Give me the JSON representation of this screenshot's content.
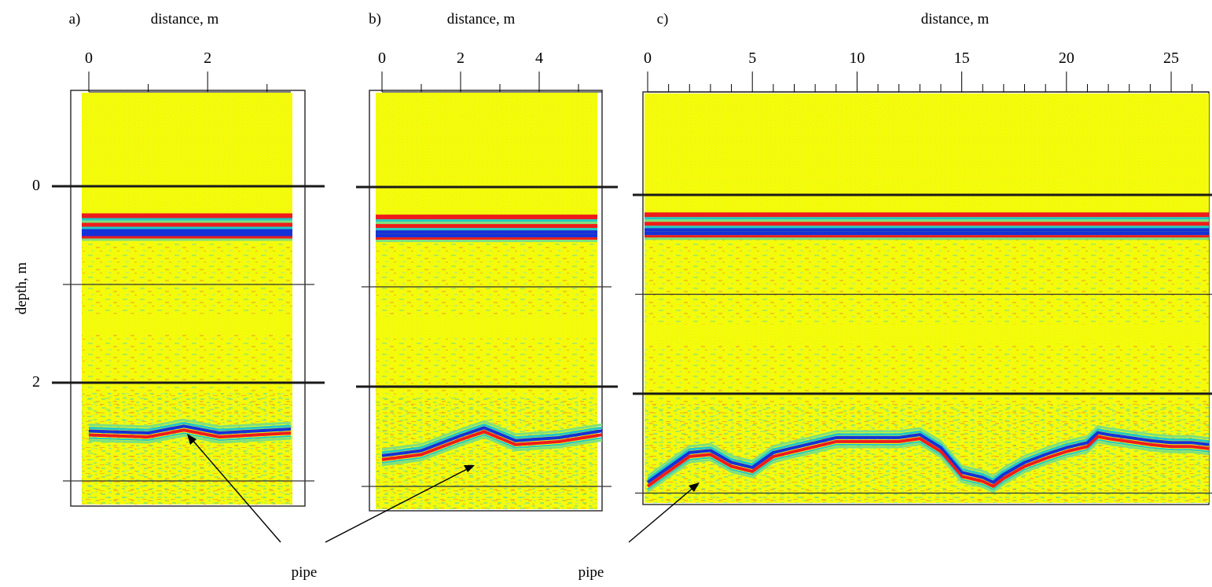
{
  "figure": {
    "y_axis_label": "depth, m",
    "y_ticks": [
      "0",
      "2"
    ],
    "annotation_label": "pipe",
    "colors": {
      "background": "#f5fc0a",
      "red": "#ee1c1c",
      "blue": "#1531d8",
      "cyan": "#22c8c8",
      "green": "#7fe07f",
      "dark": "#1a1a1a"
    }
  },
  "chart_data": [
    {
      "type": "heatmap",
      "panel_label": "a)",
      "xlabel": "distance, m",
      "ylabel": "depth, m",
      "x_ticks": [
        0,
        2
      ],
      "x_minor_ticks": [
        0,
        1,
        2,
        3
      ],
      "xlim": [
        0,
        3.4
      ],
      "thick_depth_lines": [
        0,
        2
      ],
      "thin_depth_lines": [
        1,
        3
      ],
      "surface_reflection_depth": 0.3,
      "pipe_reflector": {
        "x": [
          0,
          1.0,
          1.6,
          2.2,
          3.4
        ],
        "depth": [
          2.5,
          2.52,
          2.45,
          2.52,
          2.48
        ]
      },
      "annotation": "pipe"
    },
    {
      "type": "heatmap",
      "panel_label": "b)",
      "xlabel": "distance, m",
      "x_ticks": [
        0,
        2,
        4
      ],
      "x_minor_ticks": [
        0,
        1,
        2,
        3,
        4,
        5
      ],
      "xlim": [
        0,
        5.6
      ],
      "thick_depth_lines": [
        0,
        2
      ],
      "thin_depth_lines": [
        1,
        3
      ],
      "surface_reflection_depth": 0.3,
      "pipe_reflector": {
        "x": [
          0,
          1.0,
          2.0,
          2.6,
          3.4,
          4.5,
          5.6
        ],
        "depth": [
          2.7,
          2.65,
          2.5,
          2.42,
          2.55,
          2.52,
          2.45
        ]
      },
      "annotation": "pipe"
    },
    {
      "type": "heatmap",
      "panel_label": "c)",
      "xlabel": "distance, m",
      "x_ticks": [
        0,
        5,
        10,
        15,
        20,
        25
      ],
      "x_minor_ticks": [
        0,
        1,
        2,
        3,
        4,
        5,
        6,
        7,
        8,
        9,
        10,
        11,
        12,
        13,
        14,
        15,
        16,
        17,
        18,
        19,
        20,
        21,
        22,
        23,
        24,
        25,
        26
      ],
      "xlim": [
        0,
        26.8
      ],
      "thick_depth_lines": [
        0,
        2
      ],
      "thin_depth_lines": [
        1,
        3
      ],
      "surface_reflection_depth": 0.2,
      "pipe_reflector": {
        "x": [
          0,
          1,
          2,
          3,
          4,
          5,
          6,
          7,
          8,
          9,
          10,
          11,
          12,
          13,
          14,
          15,
          16,
          16.5,
          17,
          18,
          19,
          20,
          21,
          21.5,
          22,
          23,
          24,
          25,
          26,
          26.8
        ],
        "depth": [
          2.9,
          2.75,
          2.6,
          2.58,
          2.7,
          2.75,
          2.6,
          2.55,
          2.5,
          2.45,
          2.45,
          2.45,
          2.45,
          2.42,
          2.55,
          2.8,
          2.85,
          2.9,
          2.82,
          2.7,
          2.62,
          2.55,
          2.5,
          2.4,
          2.42,
          2.45,
          2.48,
          2.5,
          2.5,
          2.52
        ]
      },
      "annotation": "pipe"
    }
  ]
}
